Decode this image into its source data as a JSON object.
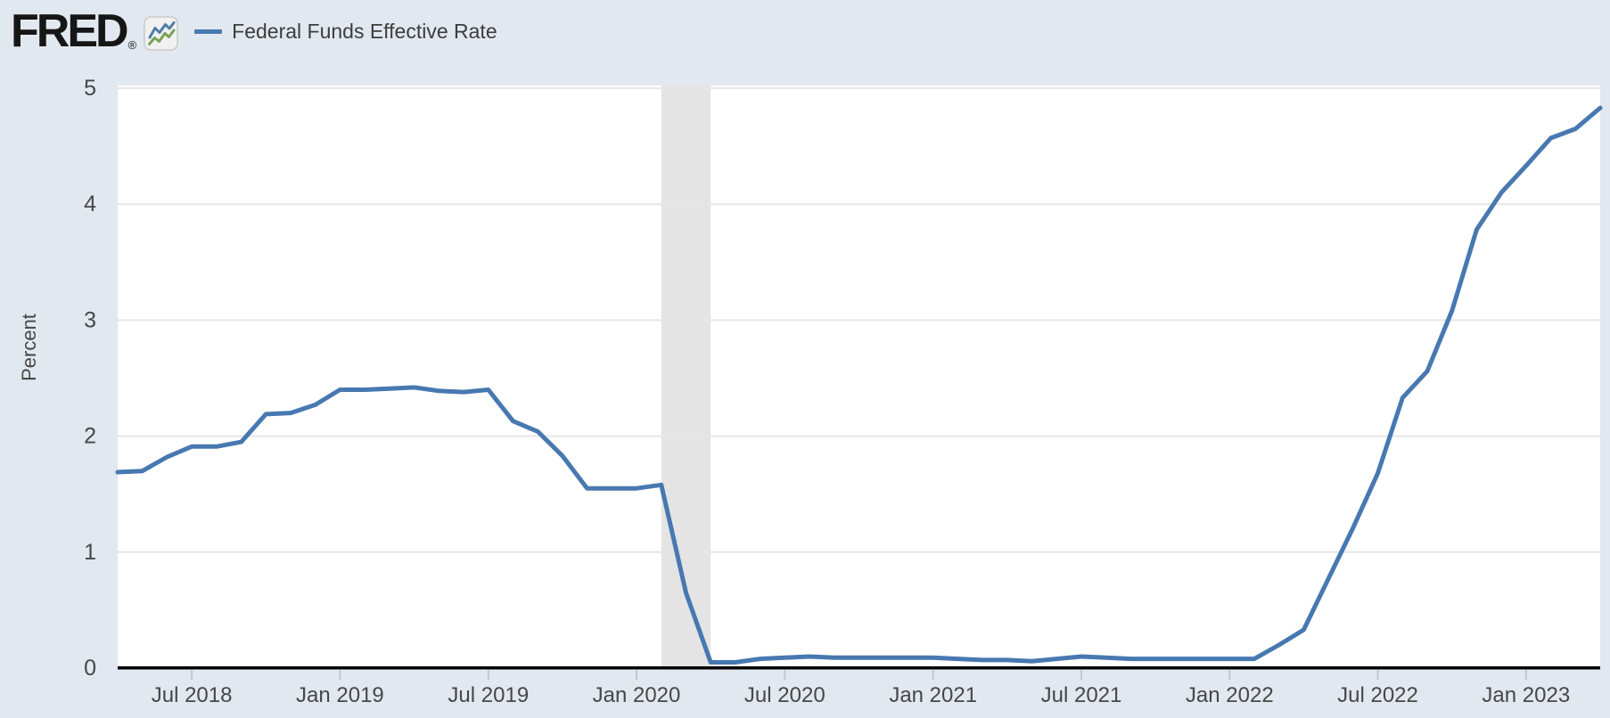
{
  "header": {
    "logo_text": "FRED",
    "registered_mark": "®",
    "logo_icon": "fred-sparkline-icon",
    "legend": {
      "label": "Federal Funds Effective Rate"
    }
  },
  "colors": {
    "page_bg": "#e2e8ef",
    "plot_bg": "#ffffff",
    "grid": "#e6e6e6",
    "recession_band": "#e4e4e4",
    "line": "#4878b0",
    "icon_blue": "#4d7ca8",
    "icon_green": "#79a357",
    "axis": "#000000",
    "tick_mark": "#b9c9da",
    "tick_text": "#474747",
    "logo_text": "#161616"
  },
  "chart_data": {
    "type": "line",
    "title": "Federal Funds Effective Rate",
    "xlabel": "",
    "ylabel": "Percent",
    "ylim": [
      0,
      5
    ],
    "yticks": [
      0,
      1,
      2,
      3,
      4,
      5
    ],
    "grid": "horizontal",
    "legend_position": "top-left",
    "series_name": "Federal Funds Effective Rate",
    "frequency": "monthly",
    "dates": [
      "2018-04",
      "2018-05",
      "2018-06",
      "2018-07",
      "2018-08",
      "2018-09",
      "2018-10",
      "2018-11",
      "2018-12",
      "2019-01",
      "2019-02",
      "2019-03",
      "2019-04",
      "2019-05",
      "2019-06",
      "2019-07",
      "2019-08",
      "2019-09",
      "2019-10",
      "2019-11",
      "2019-12",
      "2020-01",
      "2020-02",
      "2020-03",
      "2020-04",
      "2020-05",
      "2020-06",
      "2020-07",
      "2020-08",
      "2020-09",
      "2020-10",
      "2020-11",
      "2020-12",
      "2021-01",
      "2021-02",
      "2021-03",
      "2021-04",
      "2021-05",
      "2021-06",
      "2021-07",
      "2021-08",
      "2021-09",
      "2021-10",
      "2021-11",
      "2021-12",
      "2022-01",
      "2022-02",
      "2022-03",
      "2022-04",
      "2022-05",
      "2022-06",
      "2022-07",
      "2022-08",
      "2022-09",
      "2022-10",
      "2022-11",
      "2022-12",
      "2023-01",
      "2023-02",
      "2023-03",
      "2023-04"
    ],
    "values": [
      1.69,
      1.7,
      1.82,
      1.91,
      1.91,
      1.95,
      2.19,
      2.2,
      2.27,
      2.4,
      2.4,
      2.41,
      2.42,
      2.39,
      2.38,
      2.4,
      2.13,
      2.04,
      1.83,
      1.55,
      1.55,
      1.55,
      1.58,
      0.65,
      0.05,
      0.05,
      0.08,
      0.09,
      0.1,
      0.09,
      0.09,
      0.09,
      0.09,
      0.09,
      0.08,
      0.07,
      0.07,
      0.06,
      0.08,
      0.1,
      0.09,
      0.08,
      0.08,
      0.08,
      0.08,
      0.08,
      0.08,
      0.2,
      0.33,
      0.77,
      1.21,
      1.68,
      2.33,
      2.56,
      3.08,
      3.78,
      4.1,
      4.33,
      4.57,
      4.65,
      4.83
    ],
    "xticks": [
      {
        "label": "Jul 2018",
        "date": "2018-07"
      },
      {
        "label": "Jan 2019",
        "date": "2019-01"
      },
      {
        "label": "Jul 2019",
        "date": "2019-07"
      },
      {
        "label": "Jan 2020",
        "date": "2020-01"
      },
      {
        "label": "Jul 2020",
        "date": "2020-07"
      },
      {
        "label": "Jan 2021",
        "date": "2021-01"
      },
      {
        "label": "Jul 2021",
        "date": "2021-07"
      },
      {
        "label": "Jan 2022",
        "date": "2022-01"
      },
      {
        "label": "Jul 2022",
        "date": "2022-07"
      },
      {
        "label": "Jan 2023",
        "date": "2023-01"
      }
    ],
    "recession_band": {
      "from": "2020-02",
      "to": "2020-04"
    }
  }
}
